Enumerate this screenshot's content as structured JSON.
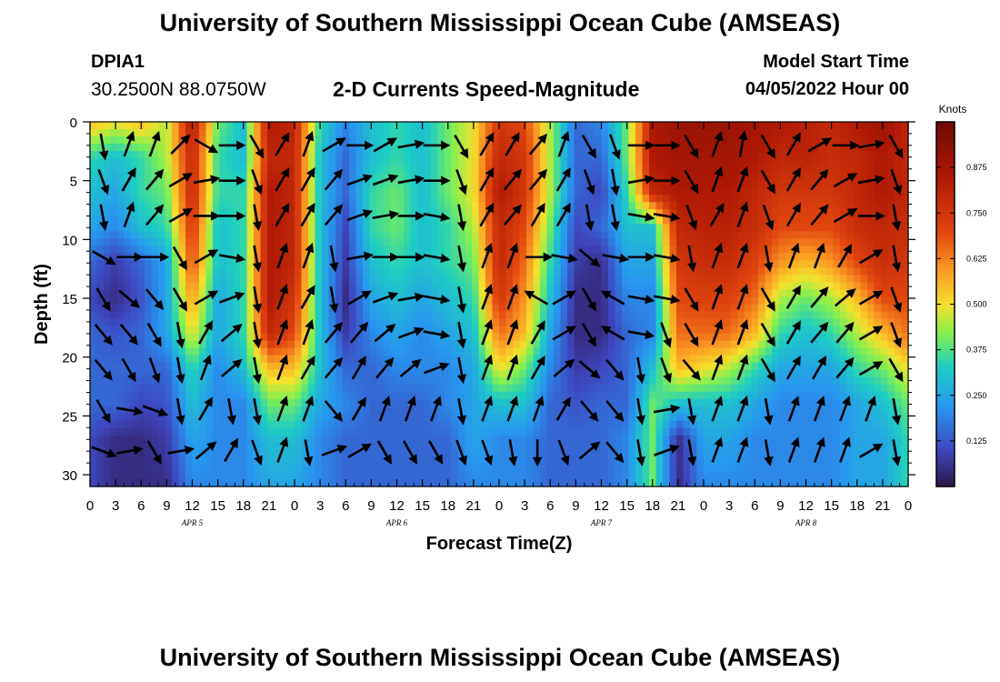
{
  "header": {
    "title": "University of Southern Mississippi Ocean Cube (AMSEAS)",
    "station_id": "DPIA1",
    "coords": "30.2500N  88.0750W",
    "subtitle": "2-D Currents Speed-Magnitude",
    "model_start_label": "Model Start Time",
    "model_start_value": "04/05/2022 Hour 00"
  },
  "footer": {
    "title": "University of Southern Mississippi Ocean Cube (AMSEAS)"
  },
  "chart_data": {
    "type": "heatmap",
    "xlabel": "Forecast Time(Z)",
    "ylabel": "Depth (ft)",
    "x_hours_range": [
      0,
      96
    ],
    "ylim": [
      0,
      31
    ],
    "y_inverted": true,
    "x_tick_hours": [
      0,
      3,
      6,
      9,
      12,
      15,
      18,
      21,
      24,
      27,
      30,
      33,
      36,
      39,
      42,
      45,
      48,
      51,
      54,
      57,
      60,
      63,
      66,
      69,
      72,
      75,
      78,
      81,
      84,
      87,
      90,
      93,
      96
    ],
    "x_tick_labels": [
      "0",
      "3",
      "6",
      "9",
      "12",
      "15",
      "18",
      "21",
      "0",
      "3",
      "6",
      "9",
      "12",
      "15",
      "18",
      "21",
      "0",
      "3",
      "6",
      "9",
      "12",
      "15",
      "18",
      "21",
      "0",
      "3",
      "6",
      "9",
      "12",
      "15",
      "18",
      "21",
      "0"
    ],
    "day_labels": [
      {
        "hour": 12,
        "text": "APR 5"
      },
      {
        "hour": 36,
        "text": "APR 6"
      },
      {
        "hour": 60,
        "text": "APR 7"
      },
      {
        "hour": 84,
        "text": "APR 8"
      }
    ],
    "y_ticks": [
      0,
      5,
      10,
      15,
      20,
      25,
      30
    ],
    "y_tick_labels": [
      "0",
      "5",
      "10",
      "15",
      "20",
      "25",
      "30"
    ],
    "colorbar": {
      "units": "Knots",
      "range": [
        0,
        1.0
      ],
      "ticks": [
        0.125,
        0.25,
        0.375,
        0.5,
        0.625,
        0.75,
        0.875
      ],
      "tick_labels": [
        "0.125",
        "0.250",
        "0.375",
        "0.500",
        "0.625",
        "0.750",
        "0.875"
      ]
    },
    "speed_grid_depths_ft": [
      0,
      3,
      6,
      9,
      12,
      15,
      18,
      21,
      24,
      27,
      31
    ],
    "speed_grid_hours": [
      0,
      3,
      6,
      9,
      12,
      15,
      18,
      21,
      24,
      27,
      30,
      33,
      36,
      39,
      42,
      45,
      48,
      51,
      54,
      57,
      60,
      63,
      66,
      69,
      72,
      75,
      78,
      81,
      84,
      87,
      90,
      93,
      96
    ],
    "speed_knots": [
      [
        0.55,
        0.5,
        0.55,
        0.45,
        0.85,
        0.4,
        0.3,
        0.85,
        0.8,
        0.35,
        0.2,
        0.3,
        0.35,
        0.3,
        0.4,
        0.5,
        0.75,
        0.7,
        0.45,
        0.15,
        0.2,
        0.4,
        0.85,
        0.9,
        0.9,
        0.9,
        0.88,
        0.85,
        0.82,
        0.8,
        0.85,
        0.9,
        0.8
      ],
      [
        0.35,
        0.3,
        0.35,
        0.45,
        0.8,
        0.35,
        0.3,
        0.8,
        0.8,
        0.3,
        0.15,
        0.3,
        0.35,
        0.3,
        0.4,
        0.5,
        0.8,
        0.75,
        0.45,
        0.15,
        0.15,
        0.4,
        0.85,
        0.88,
        0.88,
        0.88,
        0.85,
        0.8,
        0.82,
        0.78,
        0.8,
        0.85,
        0.8
      ],
      [
        0.3,
        0.25,
        0.35,
        0.4,
        0.8,
        0.35,
        0.35,
        0.85,
        0.8,
        0.3,
        0.15,
        0.35,
        0.4,
        0.3,
        0.4,
        0.5,
        0.85,
        0.75,
        0.45,
        0.15,
        0.1,
        0.35,
        0.8,
        0.85,
        0.85,
        0.85,
        0.8,
        0.75,
        0.75,
        0.75,
        0.8,
        0.85,
        0.8
      ],
      [
        0.25,
        0.2,
        0.3,
        0.35,
        0.75,
        0.3,
        0.35,
        0.85,
        0.8,
        0.3,
        0.1,
        0.35,
        0.4,
        0.3,
        0.35,
        0.45,
        0.8,
        0.7,
        0.4,
        0.1,
        0.15,
        0.3,
        0.3,
        0.8,
        0.82,
        0.82,
        0.78,
        0.7,
        0.7,
        0.7,
        0.78,
        0.8,
        0.78
      ],
      [
        0.15,
        0.08,
        0.15,
        0.25,
        0.7,
        0.3,
        0.35,
        0.85,
        0.8,
        0.3,
        0.08,
        0.3,
        0.35,
        0.3,
        0.35,
        0.4,
        0.8,
        0.65,
        0.35,
        0.08,
        0.05,
        0.25,
        0.25,
        0.75,
        0.78,
        0.78,
        0.72,
        0.6,
        0.55,
        0.6,
        0.7,
        0.78,
        0.75
      ],
      [
        0.1,
        0.05,
        0.12,
        0.25,
        0.6,
        0.25,
        0.35,
        0.85,
        0.75,
        0.3,
        0.05,
        0.25,
        0.3,
        0.25,
        0.3,
        0.35,
        0.75,
        0.6,
        0.3,
        0.05,
        0.05,
        0.2,
        0.2,
        0.7,
        0.72,
        0.72,
        0.65,
        0.45,
        0.4,
        0.45,
        0.55,
        0.7,
        0.7
      ],
      [
        0.15,
        0.12,
        0.15,
        0.25,
        0.5,
        0.25,
        0.35,
        0.8,
        0.7,
        0.3,
        0.08,
        0.2,
        0.25,
        0.2,
        0.25,
        0.3,
        0.65,
        0.55,
        0.25,
        0.05,
        0.05,
        0.15,
        0.2,
        0.65,
        0.65,
        0.65,
        0.55,
        0.35,
        0.3,
        0.35,
        0.45,
        0.55,
        0.65
      ],
      [
        0.15,
        0.15,
        0.15,
        0.15,
        0.35,
        0.2,
        0.3,
        0.55,
        0.55,
        0.3,
        0.15,
        0.15,
        0.2,
        0.2,
        0.2,
        0.25,
        0.5,
        0.4,
        0.2,
        0.08,
        0.1,
        0.15,
        0.3,
        0.55,
        0.5,
        0.45,
        0.35,
        0.25,
        0.25,
        0.25,
        0.35,
        0.4,
        0.5
      ],
      [
        0.15,
        0.15,
        0.1,
        0.12,
        0.3,
        0.2,
        0.2,
        0.4,
        0.4,
        0.25,
        0.2,
        0.15,
        0.15,
        0.15,
        0.2,
        0.25,
        0.3,
        0.3,
        0.15,
        0.12,
        0.15,
        0.15,
        0.4,
        0.3,
        0.3,
        0.3,
        0.25,
        0.2,
        0.2,
        0.2,
        0.25,
        0.3,
        0.4
      ],
      [
        0.1,
        0.05,
        0.05,
        0.08,
        0.25,
        0.2,
        0.2,
        0.3,
        0.3,
        0.2,
        0.15,
        0.15,
        0.15,
        0.15,
        0.15,
        0.25,
        0.2,
        0.2,
        0.15,
        0.15,
        0.15,
        0.2,
        0.4,
        0.05,
        0.25,
        0.25,
        0.2,
        0.2,
        0.2,
        0.2,
        0.25,
        0.25,
        0.35
      ],
      [
        0.1,
        0.05,
        0.05,
        0.05,
        0.2,
        0.2,
        0.2,
        0.25,
        0.25,
        0.2,
        0.15,
        0.15,
        0.15,
        0.15,
        0.15,
        0.2,
        0.2,
        0.2,
        0.15,
        0.15,
        0.15,
        0.2,
        0.4,
        0.05,
        0.2,
        0.2,
        0.2,
        0.2,
        0.2,
        0.2,
        0.25,
        0.25,
        0.35
      ]
    ],
    "vector_grid_depths_ft": [
      2,
      5,
      8,
      11.5,
      15,
      18,
      21,
      24.5,
      28
    ],
    "vector_grid_hours": [
      1.5,
      4.5,
      7.5,
      10.5,
      13.5,
      16.5,
      19.5,
      22.5,
      25.5,
      28.5,
      31.5,
      34.5,
      37.5,
      40.5,
      43.5,
      46.5,
      49.5,
      52.5,
      55.5,
      58.5,
      61.5,
      64.5,
      67.5,
      70.5,
      73.5,
      76.5,
      79.5,
      82.5,
      85.5,
      88.5,
      91.5,
      94.5
    ],
    "vector_direction_deg": [
      [
        170,
        20,
        20,
        45,
        120,
        90,
        150,
        30,
        20,
        60,
        90,
        60,
        80,
        90,
        150,
        30,
        30,
        40,
        20,
        150,
        160,
        90,
        90,
        150,
        20,
        10,
        150,
        30,
        60,
        90,
        80,
        150
      ],
      [
        160,
        30,
        40,
        60,
        80,
        90,
        160,
        30,
        30,
        40,
        70,
        70,
        80,
        90,
        160,
        30,
        40,
        40,
        30,
        160,
        170,
        80,
        90,
        150,
        20,
        20,
        150,
        30,
        40,
        60,
        80,
        160
      ],
      [
        170,
        20,
        40,
        60,
        90,
        90,
        170,
        30,
        30,
        40,
        70,
        80,
        90,
        100,
        170,
        30,
        40,
        30,
        30,
        170,
        170,
        100,
        100,
        160,
        30,
        20,
        160,
        30,
        40,
        60,
        90,
        170
      ],
      [
        120,
        90,
        90,
        150,
        60,
        100,
        170,
        20,
        20,
        170,
        80,
        90,
        90,
        100,
        170,
        20,
        20,
        90,
        100,
        130,
        100,
        90,
        100,
        170,
        20,
        20,
        170,
        20,
        20,
        30,
        60,
        170
      ],
      [
        150,
        130,
        140,
        150,
        60,
        70,
        170,
        20,
        30,
        170,
        60,
        70,
        80,
        100,
        170,
        20,
        20,
        300,
        60,
        150,
        300,
        100,
        100,
        150,
        20,
        20,
        150,
        30,
        40,
        50,
        60,
        160
      ],
      [
        140,
        140,
        150,
        170,
        30,
        50,
        170,
        20,
        20,
        40,
        40,
        50,
        70,
        100,
        170,
        20,
        20,
        30,
        60,
        150,
        300,
        100,
        160,
        150,
        20,
        20,
        150,
        30,
        40,
        40,
        60,
        160
      ],
      [
        140,
        150,
        160,
        170,
        20,
        50,
        170,
        20,
        30,
        40,
        30,
        40,
        50,
        70,
        170,
        20,
        20,
        30,
        50,
        130,
        140,
        170,
        160,
        140,
        20,
        20,
        150,
        30,
        30,
        40,
        60,
        150
      ],
      [
        150,
        100,
        110,
        170,
        30,
        170,
        170,
        20,
        20,
        140,
        30,
        20,
        20,
        20,
        170,
        20,
        20,
        20,
        30,
        140,
        140,
        170,
        80,
        170,
        20,
        20,
        170,
        20,
        20,
        20,
        20,
        170
      ],
      [
        110,
        80,
        150,
        80,
        50,
        30,
        160,
        20,
        170,
        70,
        60,
        150,
        150,
        150,
        160,
        160,
        170,
        180,
        160,
        50,
        140,
        170,
        70,
        170,
        20,
        20,
        170,
        20,
        20,
        20,
        60,
        170
      ]
    ]
  }
}
